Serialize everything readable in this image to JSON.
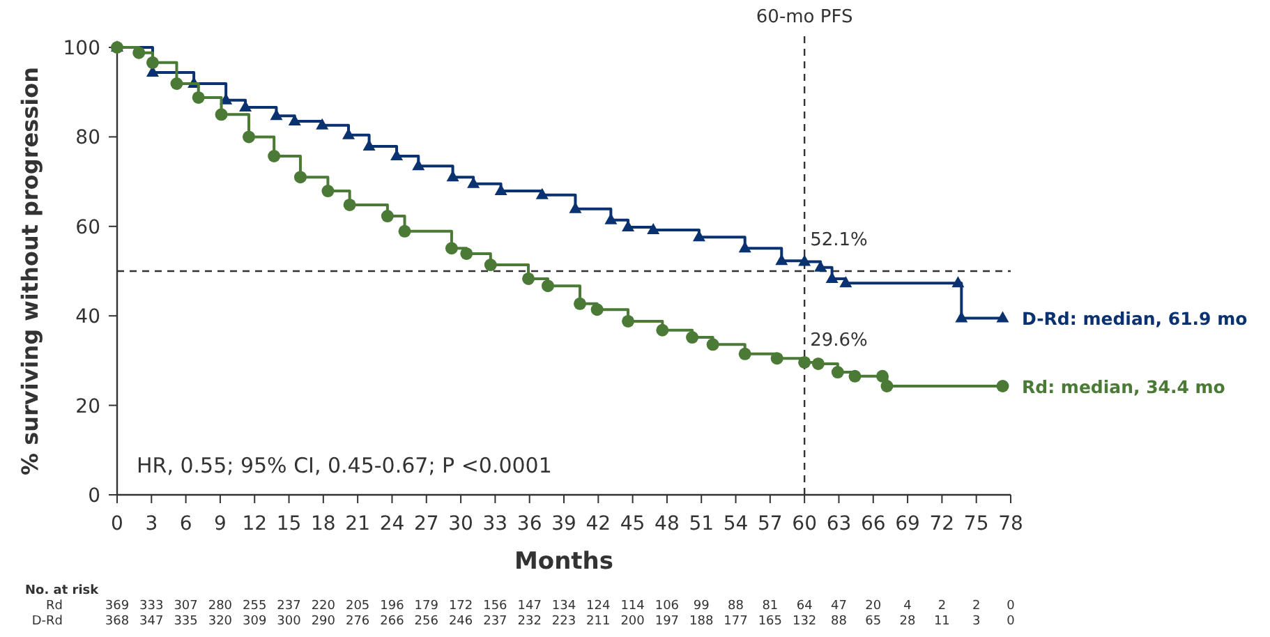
{
  "chart_data": {
    "type": "step",
    "xlabel": "Months",
    "ylabel": "% surviving without progression",
    "xlim": [
      0,
      78
    ],
    "ylim": [
      0,
      100
    ],
    "xticks": [
      0,
      3,
      6,
      9,
      12,
      15,
      18,
      21,
      24,
      27,
      30,
      33,
      36,
      39,
      42,
      45,
      48,
      51,
      54,
      57,
      60,
      63,
      66,
      69,
      72,
      75,
      78
    ],
    "yticks": [
      0,
      20,
      40,
      60,
      80,
      100
    ],
    "grid": false,
    "legend": false,
    "series": [
      {
        "name": "D-Rd: median, 61.9 mo",
        "color": "#0b3270",
        "marker": "triangle",
        "x": [
          0,
          3.1,
          6.7,
          9.5,
          11.2,
          13.9,
          15.5,
          17.9,
          20.2,
          22,
          24.4,
          26.3,
          29.3,
          31.1,
          33.5,
          37.1,
          40,
          43.1,
          44.6,
          46.8,
          50.8,
          54.8,
          58,
          60,
          61.4,
          62.4,
          63.6,
          73.4,
          73.7,
          77.3
        ],
        "values": [
          100,
          94.4,
          91.9,
          88.2,
          86.6,
          84.7,
          83.5,
          82.6,
          80.4,
          77.9,
          75.7,
          73.5,
          71,
          69.5,
          67.9,
          67,
          63.9,
          61.4,
          59.8,
          59.2,
          57.6,
          55.1,
          52.3,
          52.1,
          50.8,
          48.3,
          47.3,
          47.3,
          39.5,
          39.5
        ]
      },
      {
        "name": "Rd: median, 34.4 mo",
        "color": "#4a7a35",
        "marker": "circle",
        "x": [
          0,
          1.9,
          3.1,
          5.2,
          7.1,
          9.1,
          11.5,
          13.7,
          16,
          18.4,
          20.3,
          23.6,
          25.1,
          29.2,
          30.5,
          32.6,
          35.9,
          37.6,
          40.4,
          41.9,
          44.6,
          47.6,
          50.2,
          52,
          54.8,
          57.6,
          60,
          61.2,
          62.9,
          64.4,
          66.8,
          67.2,
          77.3
        ],
        "values": [
          100,
          98.8,
          96.6,
          91.9,
          88.8,
          85,
          80,
          75.7,
          71,
          67.9,
          64.8,
          62.3,
          58.9,
          55.1,
          53.9,
          51.4,
          48.3,
          46.7,
          42.7,
          41.4,
          38.8,
          36.8,
          35.2,
          33.6,
          31.5,
          30.5,
          29.6,
          29.3,
          27.4,
          26.5,
          26.5,
          24.3,
          24.3
        ]
      }
    ],
    "ref_lines": [
      {
        "axis": "x",
        "value": 60,
        "label": "60-mo PFS",
        "line_style": "dashed",
        "color": "#333333"
      },
      {
        "axis": "y",
        "value": 50,
        "line_style": "dashed",
        "color": "#333333"
      }
    ],
    "annotations": [
      "HR, 0.55; 95% CI, 0.45-0.67; P <0.0001",
      {
        "text": "52.1%",
        "x": 60,
        "y": 52.1
      },
      {
        "text": "29.6%",
        "x": 60,
        "y": 29.6
      },
      "No. at risk",
      "Rd 369 333 307 280 255 237 220 205 196 179 172 156 147 134 124 114 106 99 88 81 64 47 20 4 2 2 0",
      "D-Rd 368 347 335 320 309 300 290 276 266 256 246 237 232 223 211 200 197 188 177 165 132 88 65 28 11 3 0"
    ]
  }
}
